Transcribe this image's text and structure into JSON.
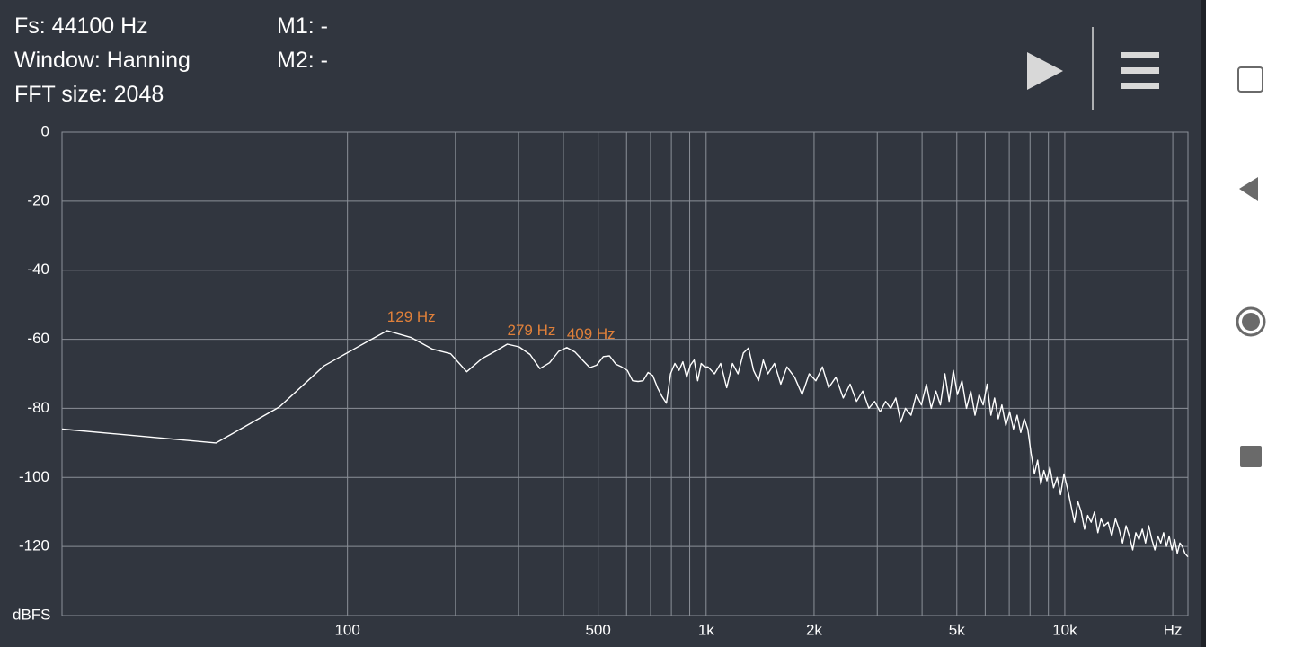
{
  "header": {
    "info": [
      "Fs: 44100 Hz",
      "Window: Hanning",
      "FFT size: 2048"
    ],
    "markers": [
      "M1: -",
      "M2: -"
    ]
  },
  "chart_data": {
    "type": "line",
    "xlabel": "Hz",
    "ylabel": "dBFS",
    "xscale": "log",
    "grid": true,
    "color": "#ffffff",
    "xlim": [
      16,
      22050
    ],
    "ylim": [
      -140,
      0
    ],
    "yticks": [
      0,
      -20,
      -40,
      -60,
      -80,
      -100,
      -120
    ],
    "xticks": [
      100,
      500,
      {
        "value": 1000,
        "label": "1k"
      },
      {
        "value": 2000,
        "label": "2k"
      },
      {
        "value": 5000,
        "label": "5k"
      },
      {
        "value": 10000,
        "label": "10k"
      }
    ],
    "xgrid": [
      100,
      200,
      300,
      400,
      500,
      600,
      700,
      800,
      900,
      1000,
      2000,
      3000,
      4000,
      5000,
      6000,
      7000,
      8000,
      9000,
      10000,
      20000
    ],
    "annotations": [
      {
        "text": "129 Hz",
        "x": 129,
        "y": -57.5
      },
      {
        "text": "279 Hz",
        "x": 279,
        "y": -61.4
      },
      {
        "text": "409 Hz",
        "x": 409,
        "y": -62.4
      }
    ],
    "x": [
      16,
      43,
      64.6,
      86,
      107.7,
      129,
      150.7,
      172,
      194,
      215,
      237,
      258,
      279,
      301,
      323,
      344,
      366,
      388,
      409,
      431,
      452,
      474,
      495,
      517,
      538,
      560,
      581,
      603,
      624,
      646,
      667,
      689,
      710,
      732,
      753,
      775,
      796,
      818,
      840,
      861,
      883,
      904,
      926,
      947,
      969,
      990,
      1012,
      1055,
      1098,
      1141,
      1184,
      1227,
      1270,
      1313,
      1356,
      1400,
      1443,
      1486,
      1550,
      1615,
      1680,
      1765,
      1852,
      1938,
      2024,
      2110,
      2197,
      2300,
      2412,
      2520,
      2627,
      2734,
      2842,
      2950,
      3057,
      3165,
      3273,
      3380,
      3488,
      3596,
      3725,
      3854,
      3983,
      4113,
      4242,
      4371,
      4500,
      4630,
      4759,
      4888,
      5017,
      5168,
      5318,
      5469,
      5620,
      5770,
      5921,
      6072,
      6222,
      6373,
      6524,
      6675,
      6847,
      7019,
      7192,
      7364,
      7536,
      7708,
      7881,
      8053,
      8225,
      8398,
      8570,
      8742,
      8914,
      9087,
      9302,
      9518,
      9733,
      9948,
      10163,
      10400,
      10637,
      10874,
      11111,
      11348,
      11585,
      11844,
      12102,
      12360,
      12619,
      12877,
      13200,
      13522,
      13845,
      14168,
      14491,
      14814,
      15137,
      15460,
      15783,
      16106,
      16450,
      16795,
      17139,
      17484,
      17828,
      18173,
      18517,
      18862,
      19206,
      19551,
      19895,
      20240,
      20584,
      20929,
      21273,
      21618,
      22050
    ],
    "values": [
      -86,
      -90,
      -79.6,
      -67.7,
      -62,
      -57.5,
      -59.5,
      -62.8,
      -64.2,
      -69.4,
      -65.6,
      -63.5,
      -61.4,
      -62.2,
      -64.4,
      -68.5,
      -66.8,
      -63.5,
      -62.4,
      -63.7,
      -66,
      -68.2,
      -67.5,
      -65,
      -64.8,
      -67.2,
      -68,
      -69,
      -72,
      -72.2,
      -72,
      -69.6,
      -70.5,
      -74,
      -76.5,
      -78.5,
      -70,
      -67,
      -69,
      -66.5,
      -71,
      -67.5,
      -66,
      -72,
      -67,
      -68,
      -68,
      -70,
      -67,
      -74,
      -67,
      -70,
      -64,
      -62.5,
      -69,
      -72,
      -66,
      -70,
      -67,
      -73,
      -68,
      -71,
      -76,
      -70,
      -72,
      -68,
      -74,
      -71,
      -77,
      -73,
      -78,
      -75,
      -80,
      -78,
      -81,
      -78,
      -80,
      -77,
      -84,
      -80,
      -82,
      -76,
      -79,
      -73,
      -80,
      -75,
      -79,
      -70,
      -78,
      -69,
      -76,
      -72,
      -80,
      -75,
      -82,
      -76,
      -79,
      -73,
      -82,
      -77,
      -83,
      -79,
      -85,
      -81,
      -86,
      -82,
      -87,
      -83,
      -86,
      -93,
      -99,
      -95,
      -102,
      -98,
      -101,
      -97,
      -103,
      -100,
      -105,
      -99,
      -103,
      -108,
      -113,
      -107,
      -110,
      -115,
      -111,
      -113,
      -110,
      -116,
      -112,
      -114,
      -113,
      -117,
      -112,
      -115,
      -119,
      -114,
      -117,
      -121,
      -116,
      -118,
      -115,
      -119,
      -114,
      -118,
      -121,
      -117,
      -119,
      -116,
      -120,
      -117,
      -121,
      -118,
      -122,
      -119,
      -120,
      -122,
      -123
    ]
  }
}
